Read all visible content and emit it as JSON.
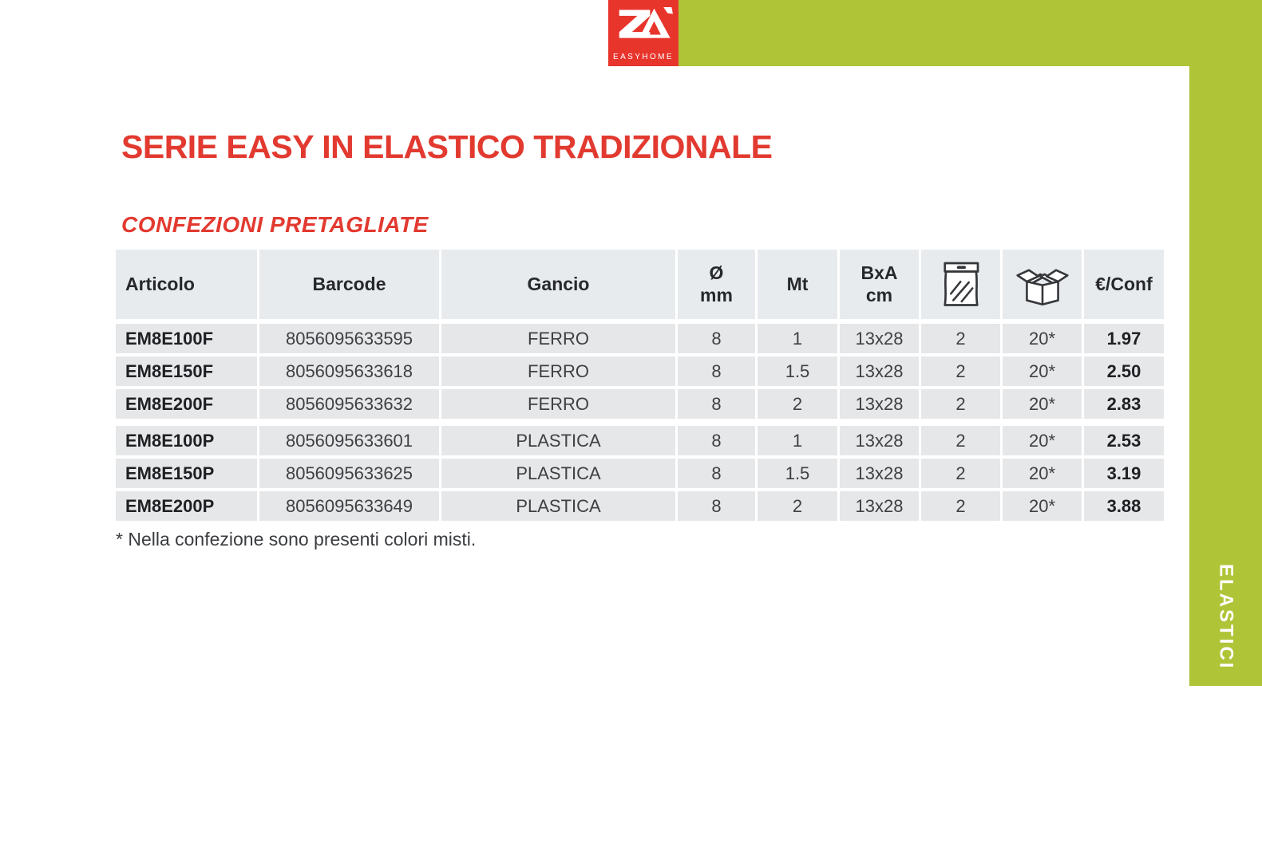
{
  "colors": {
    "brand_red": "#e8352c",
    "title_red": "#e23a30",
    "accent_green": "#afc437",
    "header_bg": "#e8ebee",
    "row_bg": "#e5e7e9"
  },
  "logo": {
    "monogram": "ZA",
    "brand": "EASYHOME"
  },
  "sidebar": {
    "label": "ELASTICI"
  },
  "content": {
    "title": "SERIE EASY IN ELASTICO TRADIZIONALE",
    "subtitle": "CONFEZIONI PRETAGLIATE",
    "footnote": "* Nella confezione sono presenti colori misti."
  },
  "table": {
    "columns": [
      {
        "key": "articolo",
        "label": "Articolo"
      },
      {
        "key": "barcode",
        "label": "Barcode"
      },
      {
        "key": "gancio",
        "label": "Gancio"
      },
      {
        "key": "diametro_mm",
        "label": "Ø\nmm"
      },
      {
        "key": "mt",
        "label": "Mt"
      },
      {
        "key": "bxa_cm",
        "label": "BxA\ncm"
      },
      {
        "key": "pezzi_busta",
        "icon": "bag-icon"
      },
      {
        "key": "pezzi_scatola",
        "icon": "box-icon"
      },
      {
        "key": "prezzo",
        "label": "€/Conf"
      }
    ],
    "groups": [
      {
        "rows": [
          [
            "EM8E100F",
            "8056095633595",
            "FERRO",
            "8",
            "1",
            "13x28",
            "2",
            "20*",
            "1.97"
          ],
          [
            "EM8E150F",
            "8056095633618",
            "FERRO",
            "8",
            "1.5",
            "13x28",
            "2",
            "20*",
            "2.50"
          ],
          [
            "EM8E200F",
            "8056095633632",
            "FERRO",
            "8",
            "2",
            "13x28",
            "2",
            "20*",
            "2.83"
          ]
        ]
      },
      {
        "rows": [
          [
            "EM8E100P",
            "8056095633601",
            "PLASTICA",
            "8",
            "1",
            "13x28",
            "2",
            "20*",
            "2.53"
          ],
          [
            "EM8E150P",
            "8056095633625",
            "PLASTICA",
            "8",
            "1.5",
            "13x28",
            "2",
            "20*",
            "3.19"
          ],
          [
            "EM8E200P",
            "8056095633649",
            "PLASTICA",
            "8",
            "2",
            "13x28",
            "2",
            "20*",
            "3.88"
          ]
        ]
      }
    ]
  }
}
